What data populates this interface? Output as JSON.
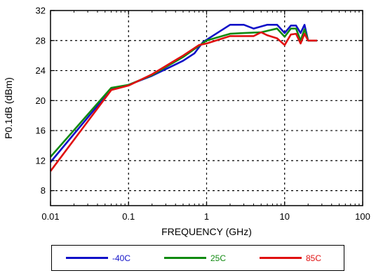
{
  "chart_data": {
    "type": "line",
    "title": "",
    "xlabel": "FREQUENCY (GHz)",
    "ylabel": "P0.1dB (dBm)",
    "xscale": "log",
    "xlim": [
      0.01,
      100
    ],
    "ylim": [
      6,
      32
    ],
    "x_ticks": [
      0.01,
      0.1,
      1,
      10,
      100
    ],
    "x_tick_labels": [
      "0.01",
      "0.1",
      "1",
      "10",
      "100"
    ],
    "y_ticks": [
      8,
      12,
      16,
      20,
      24,
      28,
      32
    ],
    "y_tick_labels": [
      "8",
      "12",
      "16",
      "20",
      "24",
      "28",
      "32"
    ],
    "grid": true,
    "legend_position": "bottom",
    "series": [
      {
        "name": "-40C",
        "color": "#1010c8",
        "points": [
          [
            0.01,
            11.8
          ],
          [
            0.06,
            21.5
          ],
          [
            0.1,
            22.1
          ],
          [
            0.2,
            23.3
          ],
          [
            0.5,
            25.3
          ],
          [
            0.7,
            26.3
          ],
          [
            0.9,
            27.8
          ],
          [
            1.0,
            28.1
          ],
          [
            2.0,
            30.1
          ],
          [
            3.0,
            30.1
          ],
          [
            4.0,
            29.6
          ],
          [
            6.0,
            30.1
          ],
          [
            8.0,
            30.1
          ],
          [
            10.0,
            29.0
          ],
          [
            12.0,
            30.0
          ],
          [
            14.0,
            30.0
          ],
          [
            16.0,
            29.0
          ],
          [
            18.0,
            30.1
          ],
          [
            20.0,
            28.0
          ],
          [
            26.0,
            28.0
          ]
        ]
      },
      {
        "name": "25C",
        "color": "#108a10",
        "points": [
          [
            0.01,
            12.5
          ],
          [
            0.06,
            21.7
          ],
          [
            0.1,
            22.1
          ],
          [
            0.2,
            23.4
          ],
          [
            0.5,
            25.8
          ],
          [
            0.8,
            27.3
          ],
          [
            1.0,
            28.0
          ],
          [
            2.0,
            28.9
          ],
          [
            3.0,
            29.0
          ],
          [
            5.0,
            29.1
          ],
          [
            8.0,
            29.6
          ],
          [
            10.0,
            28.5
          ],
          [
            12.0,
            29.6
          ],
          [
            14.0,
            29.6
          ],
          [
            16.0,
            28.0
          ],
          [
            18.0,
            29.5
          ],
          [
            20.0,
            28.0
          ],
          [
            26.0,
            28.0
          ]
        ]
      },
      {
        "name": "85C",
        "color": "#e01010",
        "points": [
          [
            0.01,
            10.6
          ],
          [
            0.06,
            21.4
          ],
          [
            0.1,
            22.0
          ],
          [
            0.2,
            23.5
          ],
          [
            0.5,
            26.0
          ],
          [
            0.8,
            27.4
          ],
          [
            1.0,
            27.6
          ],
          [
            2.0,
            28.6
          ],
          [
            4.0,
            28.6
          ],
          [
            5.0,
            29.1
          ],
          [
            6.0,
            28.7
          ],
          [
            8.0,
            28.3
          ],
          [
            10.0,
            27.4
          ],
          [
            12.0,
            28.8
          ],
          [
            14.0,
            28.9
          ],
          [
            16.0,
            27.6
          ],
          [
            18.0,
            28.9
          ],
          [
            20.0,
            28.0
          ],
          [
            26.0,
            28.0
          ]
        ]
      }
    ]
  }
}
